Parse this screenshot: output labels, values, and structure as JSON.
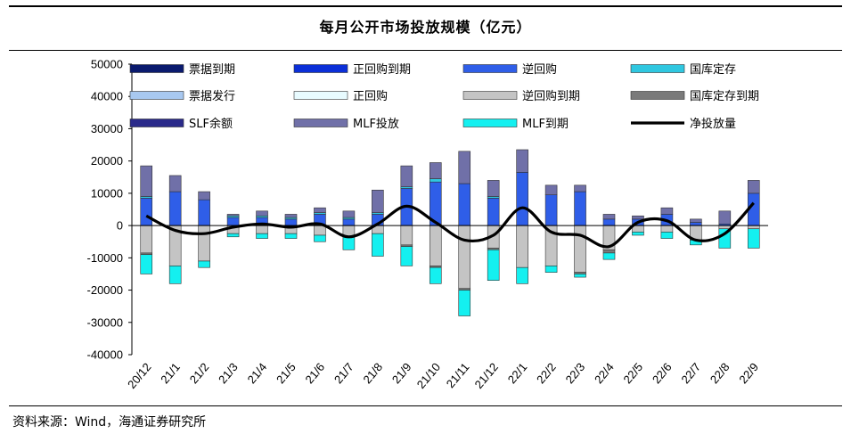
{
  "header": {
    "title": "每月公开市场投放规模（亿元）"
  },
  "footer": {
    "source": "资料来源：Wind，海通证券研究所"
  },
  "chart_data": {
    "type": "bar",
    "stacked": true,
    "title": "每月公开市场投放规模（亿元）",
    "xlabel": "",
    "ylabel": "",
    "ylim": [
      -40000,
      50000
    ],
    "yticks": [
      50000,
      40000,
      30000,
      20000,
      10000,
      0,
      -10000,
      -20000,
      -30000,
      -40000
    ],
    "categories": [
      "20/12",
      "21/1",
      "21/2",
      "21/3",
      "21/4",
      "21/5",
      "21/6",
      "21/7",
      "21/8",
      "21/9",
      "21/10",
      "21/11",
      "21/12",
      "22/1",
      "22/2",
      "22/3",
      "22/4",
      "22/5",
      "22/6",
      "22/7",
      "22/8",
      "22/9"
    ],
    "series": [
      {
        "name": "票据到期",
        "color": "#0a1a6e",
        "values": [
          0,
          0,
          0,
          0,
          0,
          0,
          0,
          0,
          0,
          0,
          0,
          0,
          0,
          0,
          0,
          0,
          0,
          0,
          0,
          0,
          0,
          0
        ]
      },
      {
        "name": "正回购到期",
        "color": "#0b2fd8",
        "values": [
          0,
          0,
          0,
          0,
          0,
          0,
          0,
          0,
          0,
          0,
          0,
          0,
          0,
          0,
          0,
          0,
          0,
          0,
          0,
          0,
          0,
          0
        ]
      },
      {
        "name": "逆回购",
        "color": "#2f5ee8",
        "values": [
          8500,
          10500,
          8000,
          2500,
          2500,
          2000,
          3500,
          2000,
          3500,
          11500,
          13500,
          13000,
          8500,
          16500,
          9500,
          10500,
          2000,
          2000,
          3500,
          1000,
          500,
          10000
        ]
      },
      {
        "name": "国库定存",
        "color": "#2fc7e0",
        "values": [
          500,
          0,
          0,
          500,
          500,
          500,
          500,
          500,
          500,
          500,
          1000,
          0,
          500,
          0,
          0,
          0,
          0,
          0,
          0,
          0,
          0,
          0
        ]
      },
      {
        "name": "票据发行",
        "color": "#a8c8f0",
        "values": [
          0,
          0,
          0,
          0,
          0,
          0,
          0,
          0,
          0,
          0,
          0,
          0,
          0,
          0,
          0,
          0,
          0,
          0,
          0,
          0,
          0,
          0
        ]
      },
      {
        "name": "正回购",
        "color": "#e8fbff",
        "values": [
          0,
          0,
          0,
          0,
          0,
          0,
          0,
          0,
          0,
          0,
          0,
          0,
          0,
          0,
          0,
          0,
          0,
          0,
          0,
          0,
          0,
          0
        ]
      },
      {
        "name": "逆回购到期",
        "color": "#c4c4c4",
        "values": [
          -8500,
          -12500,
          -11000,
          -2500,
          -2500,
          -2500,
          -3000,
          -3500,
          -2500,
          -6000,
          -12500,
          -19500,
          -7000,
          -13000,
          -12500,
          -14500,
          -7500,
          -2000,
          -2000,
          -4500,
          -1000,
          -1000
        ]
      },
      {
        "name": "国库定存到期",
        "color": "#7a7a7a",
        "values": [
          -500,
          0,
          0,
          0,
          0,
          0,
          0,
          0,
          0,
          -500,
          -500,
          -500,
          -500,
          0,
          0,
          -500,
          -1000,
          0,
          0,
          0,
          0,
          0
        ]
      },
      {
        "name": "SLF余额",
        "color": "#2a2a8a",
        "values": [
          0,
          0,
          0,
          0,
          0,
          0,
          0,
          0,
          0,
          0,
          0,
          0,
          0,
          0,
          0,
          0,
          0,
          0,
          0,
          0,
          0,
          0
        ]
      },
      {
        "name": "MLF投放",
        "color": "#7070a8",
        "values": [
          9500,
          5000,
          2500,
          500,
          1500,
          1000,
          1500,
          2000,
          7000,
          6500,
          5000,
          10000,
          5000,
          7000,
          3000,
          2000,
          1500,
          1000,
          2000,
          1000,
          4000,
          4000
        ]
      },
      {
        "name": "MLF到期",
        "color": "#14f0f0",
        "values": [
          -6000,
          -5500,
          -2000,
          -1000,
          -1500,
          -1500,
          -2000,
          -4000,
          -7000,
          -6000,
          -5000,
          -8000,
          -9500,
          -5000,
          -2000,
          -1000,
          -2000,
          -1000,
          -2000,
          -1500,
          -6000,
          -6000
        ]
      }
    ],
    "line": {
      "name": "净投放量",
      "color": "#000000",
      "values": [
        3000,
        -1500,
        -2500,
        -500,
        500,
        -500,
        500,
        -3500,
        500,
        6000,
        1000,
        -4500,
        -3000,
        5500,
        -2000,
        -3000,
        -6500,
        1000,
        1500,
        -4500,
        -2500,
        7000
      ]
    },
    "legend": {
      "position": "top",
      "entries": [
        "票据到期",
        "正回购到期",
        "逆回购",
        "国库定存",
        "票据发行",
        "正回购",
        "逆回购到期",
        "国库定存到期",
        "SLF余额",
        "MLF投放",
        "MLF到期",
        "净投放量"
      ]
    }
  }
}
